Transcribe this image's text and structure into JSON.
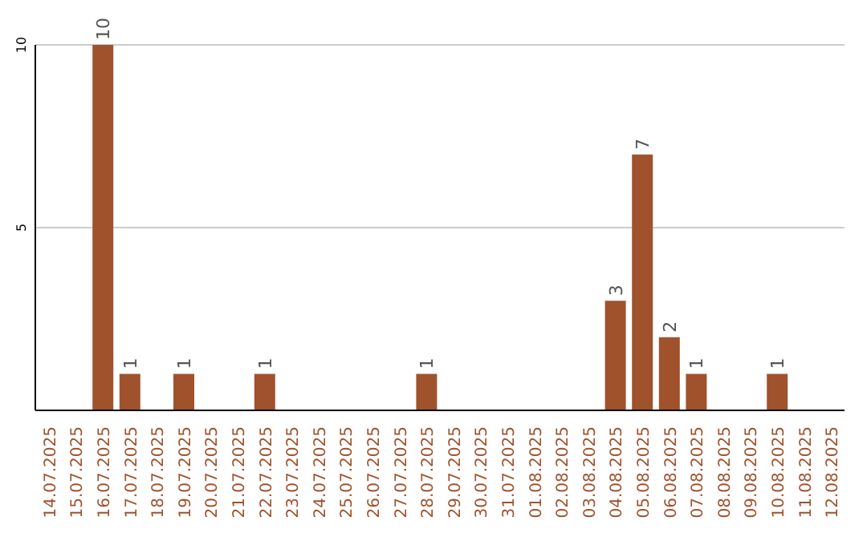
{
  "chart_data": {
    "type": "bar",
    "categories": [
      "14.07.2025",
      "15.07.2025",
      "16.07.2025",
      "17.07.2025",
      "18.07.2025",
      "19.07.2025",
      "20.07.2025",
      "21.07.2025",
      "22.07.2025",
      "23.07.2025",
      "24.07.2025",
      "25.07.2025",
      "26.07.2025",
      "27.07.2025",
      "28.07.2025",
      "29.07.2025",
      "30.07.2025",
      "31.07.2025",
      "01.08.2025",
      "02.08.2025",
      "03.08.2025",
      "04.08.2025",
      "05.08.2025",
      "06.08.2025",
      "07.08.2025",
      "08.08.2025",
      "09.08.2025",
      "10.08.2025",
      "11.08.2025",
      "12.08.2025"
    ],
    "values": [
      null,
      null,
      10,
      1,
      null,
      1,
      null,
      null,
      1,
      null,
      null,
      null,
      null,
      null,
      1,
      null,
      null,
      null,
      null,
      null,
      null,
      3,
      7,
      2,
      1,
      null,
      null,
      1,
      null,
      null
    ],
    "color": "#a0522d",
    "ylim": [
      0,
      10
    ],
    "yticks": [
      5,
      10
    ],
    "grid": "y",
    "data_labels": true
  }
}
